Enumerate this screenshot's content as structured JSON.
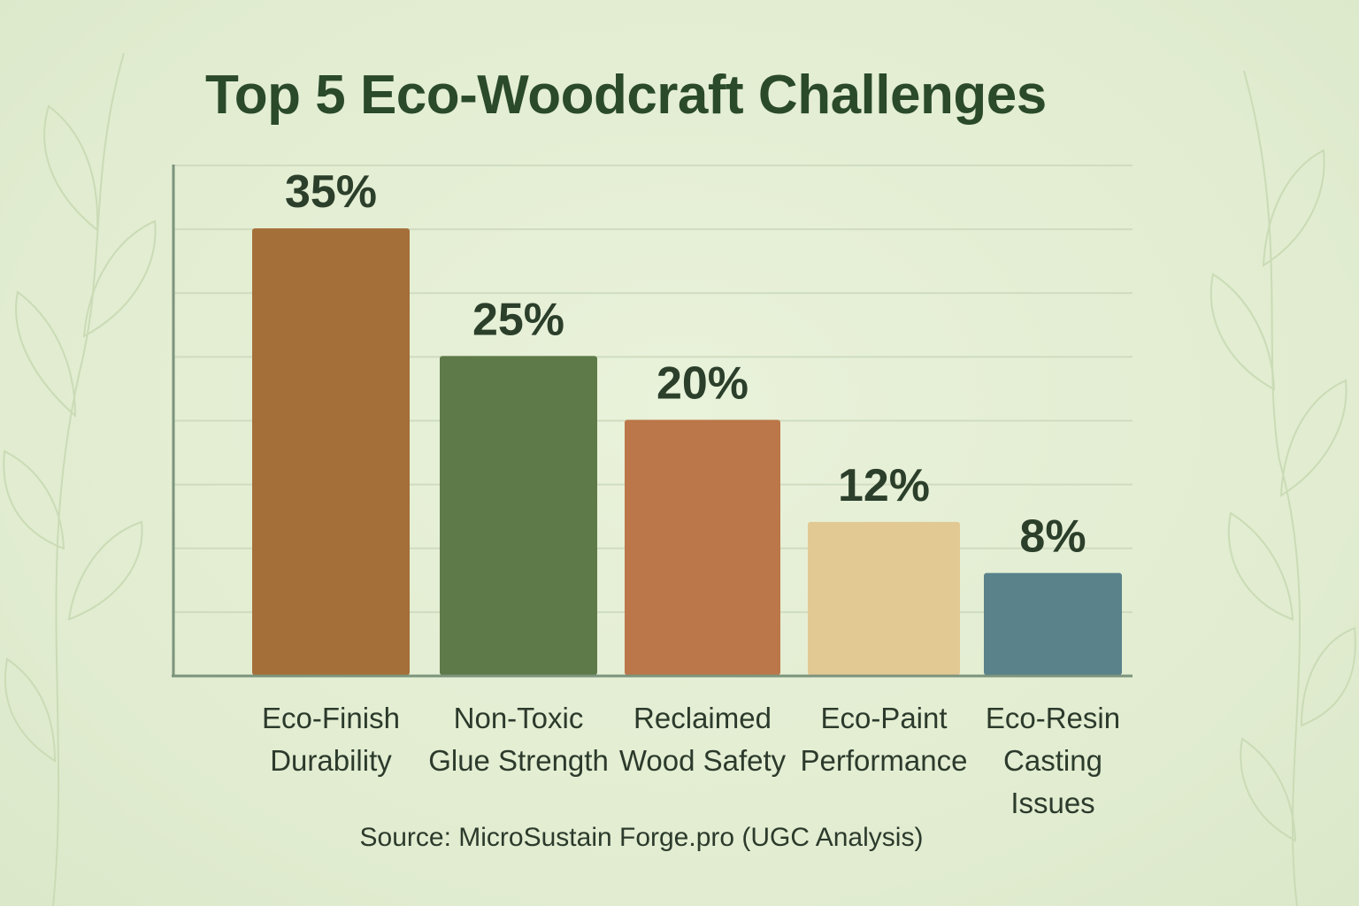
{
  "chart_data": {
    "type": "bar",
    "title": "Top 5 Eco-Woodcraft Challenges",
    "categories": [
      "Eco-Finish Durability",
      "Non-Toxic Glue Strength",
      "Reclaimed Wood Safety",
      "Eco-Paint Performance",
      "Eco-Resin Casting Issues"
    ],
    "category_lines": [
      [
        "Eco-Finish",
        "Durability"
      ],
      [
        "Non-Toxic",
        "Glue Strength"
      ],
      [
        "Reclaimed",
        "Wood Safety"
      ],
      [
        "Eco-Paint",
        "Performance"
      ],
      [
        "Eco-Resin",
        "Casting",
        "Issues"
      ]
    ],
    "values": [
      35,
      25,
      20,
      12,
      8
    ],
    "data_labels": [
      "35%",
      "25%",
      "20%",
      "12%",
      "8%"
    ],
    "colors": [
      "#a46f38",
      "#5e7a48",
      "#bb7749",
      "#e2c993",
      "#59828a"
    ],
    "xlabel": "",
    "ylabel": "",
    "ylim": [
      0,
      40
    ],
    "grid": true,
    "source": "Source: MicroSustain Forge.pro (UGC Analysis)"
  },
  "theme": {
    "background": "#e4eed4",
    "title_color": "#2a4a2a",
    "axis_color": "#7c947c",
    "grid_color": "#cfdcc0",
    "label_color": "#2a3a2a"
  }
}
